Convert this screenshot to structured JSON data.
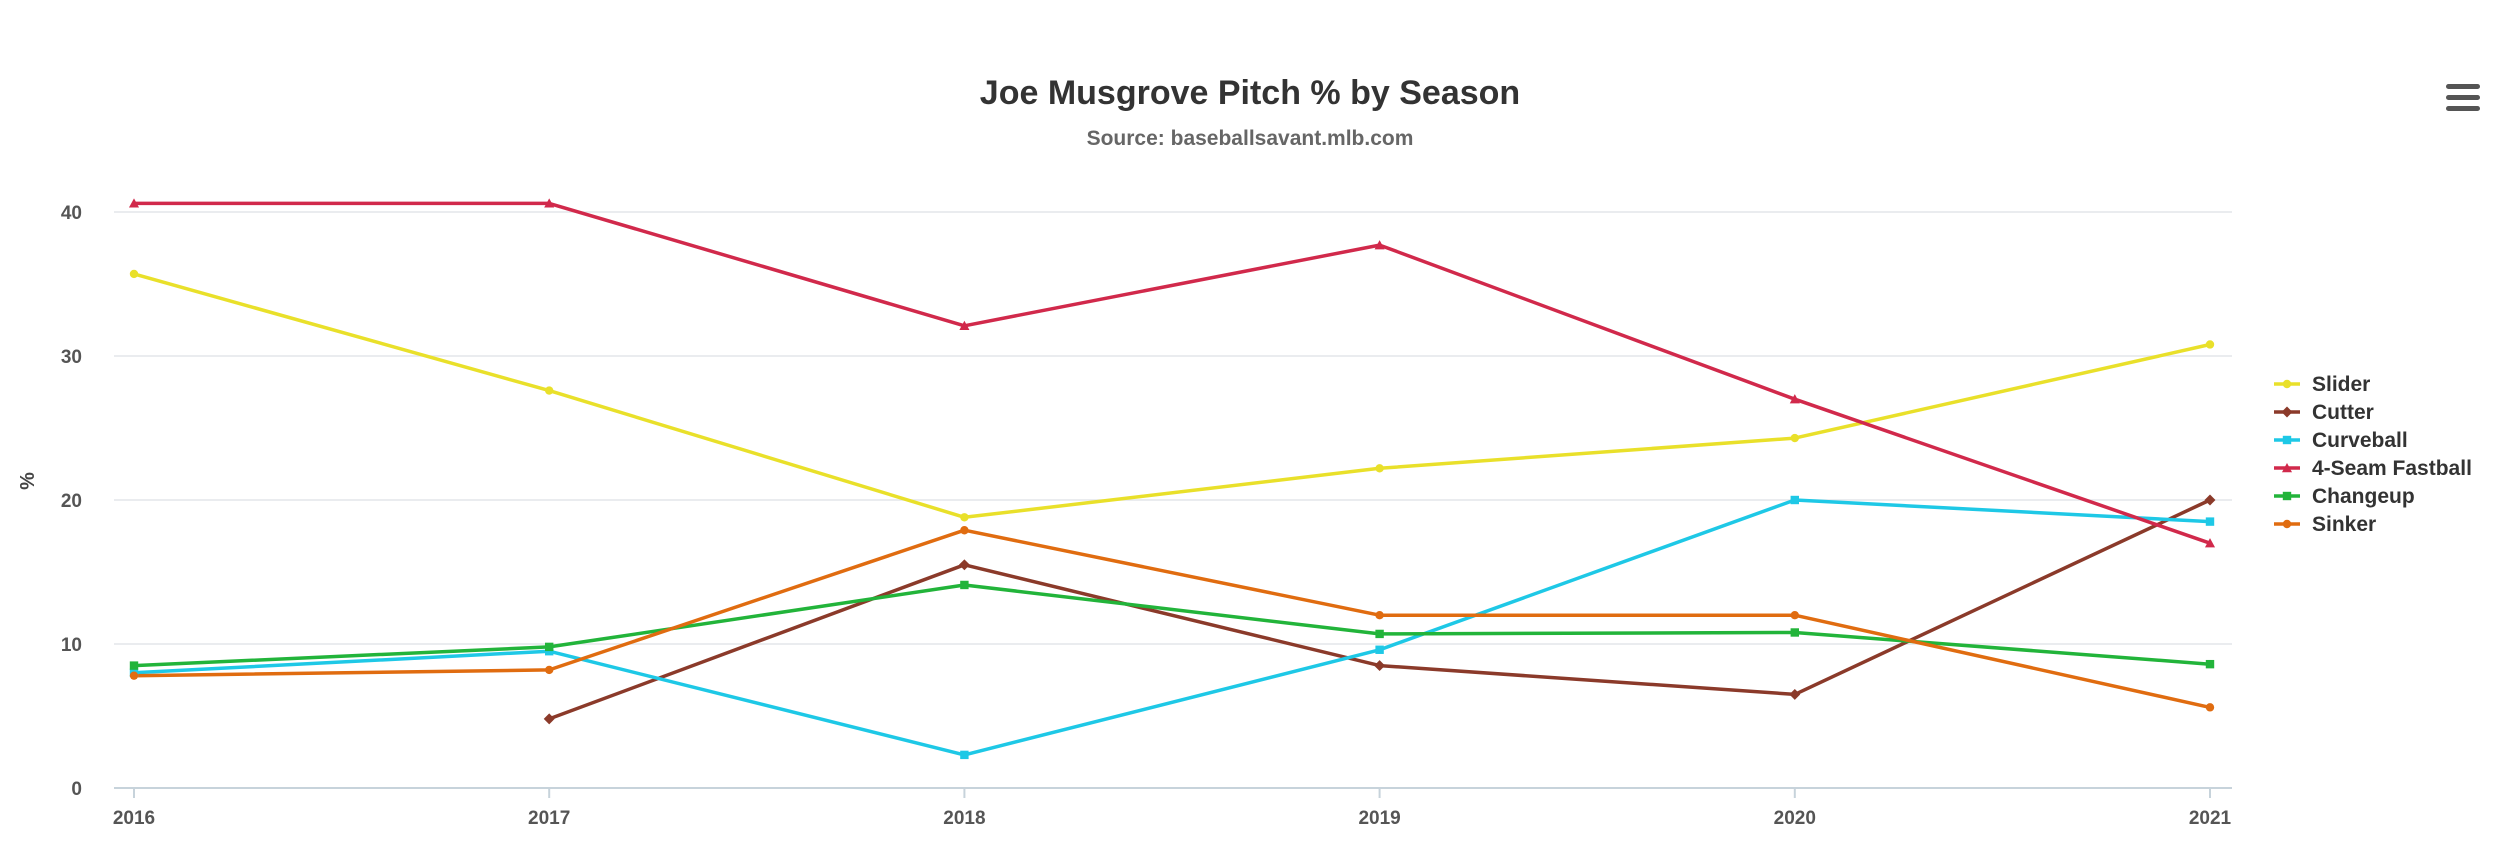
{
  "chart_data": {
    "type": "line",
    "title": "Joe Musgrove Pitch % by Season",
    "subtitle": "Source: baseballsavant.mlb.com",
    "xlabel": "",
    "ylabel": "%",
    "categories": [
      "2016",
      "2017",
      "2018",
      "2019",
      "2020",
      "2021"
    ],
    "ylim": [
      0,
      40
    ],
    "yticks": [
      0,
      10,
      20,
      30,
      40
    ],
    "grid": true,
    "legend_position": "right",
    "series": [
      {
        "name": "Slider",
        "color": "#e9e02a",
        "marker": "circle",
        "values": [
          35.7,
          27.6,
          18.8,
          22.2,
          24.3,
          30.8
        ]
      },
      {
        "name": "Cutter",
        "color": "#8b3a2a",
        "marker": "diamond",
        "values": [
          null,
          4.8,
          15.5,
          8.5,
          6.5,
          20.0
        ]
      },
      {
        "name": "Curveball",
        "color": "#1ec8e6",
        "marker": "square",
        "values": [
          8.0,
          9.5,
          2.3,
          9.6,
          20.0,
          18.5
        ]
      },
      {
        "name": "4-Seam Fastball",
        "color": "#d1294b",
        "marker": "triangle",
        "values": [
          40.6,
          40.6,
          32.1,
          37.7,
          27.0,
          17.0
        ]
      },
      {
        "name": "Changeup",
        "color": "#22b43a",
        "marker": "square",
        "values": [
          8.5,
          9.8,
          14.1,
          10.7,
          10.8,
          8.6
        ]
      },
      {
        "name": "Sinker",
        "color": "#e06c10",
        "marker": "circle",
        "values": [
          7.8,
          8.2,
          17.9,
          12.0,
          12.0,
          5.6
        ]
      }
    ]
  },
  "menu": {
    "icon": "hamburger-menu-icon"
  }
}
